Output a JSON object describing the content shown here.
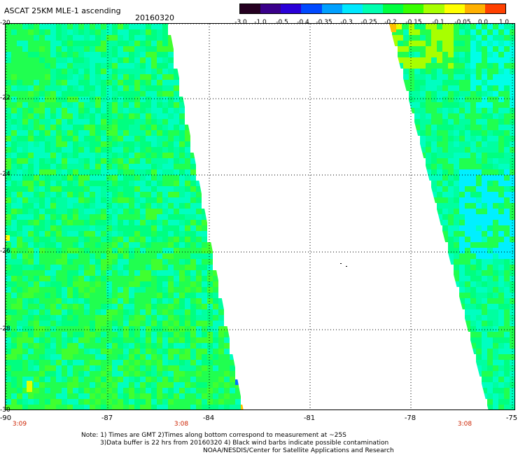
{
  "header": {
    "title": "ASCAT 25KM MLE-1 ascending",
    "date": "20160320"
  },
  "colorbar": {
    "colors": [
      "#250020",
      "#3a008a",
      "#2a00d8",
      "#0049ff",
      "#00a0ff",
      "#00e8ff",
      "#00ffb0",
      "#00ff40",
      "#38ff00",
      "#a8ff00",
      "#ffff00",
      "#ffb000",
      "#ff4000"
    ],
    "ticks": [
      "-3.0",
      "-1.0",
      "-0.5",
      "-0.4",
      "-0.35",
      "-0.3",
      "-0.25",
      "-0.2",
      "-0.15",
      "-0.1",
      "-0.05",
      "0.0",
      "1.0"
    ]
  },
  "axes": {
    "lat_labels": [
      "-20",
      "-22",
      "-24",
      "-26",
      "-28",
      "-30"
    ],
    "lon_labels": [
      "-90",
      "-87",
      "-84",
      "-81",
      "-78",
      "-75"
    ],
    "times": [
      "3:09",
      "3:08",
      "3:08"
    ]
  },
  "notes": {
    "line1": "Note: 1) Times are GMT 2)Times along bottom correspond to measurement at ~25S",
    "line2": "3)Data buffer is 22 hrs from 20160320 4) Black wind barbs indicate possible contamination",
    "line3": "NOAA/NESDIS/Center for Satellite Applications and Research"
  }
}
